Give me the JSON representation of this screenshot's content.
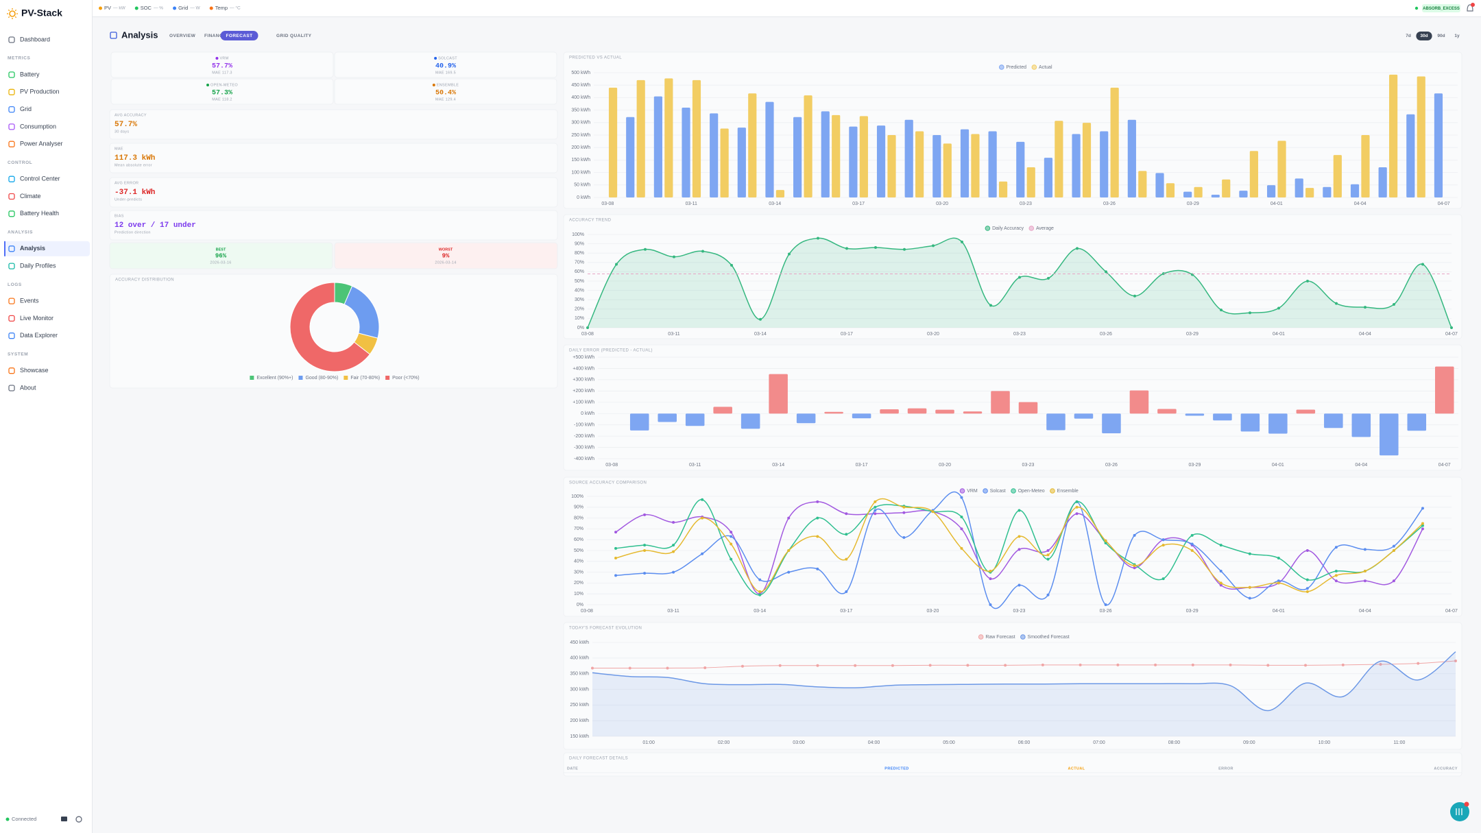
{
  "sidebar": {
    "brand": "PV-Stack",
    "top": "Dashboard",
    "active_item": "Analysis",
    "sections": [
      {
        "title": "METRICS",
        "items": [
          "Battery",
          "PV Production",
          "Grid",
          "Consumption",
          "Power Analyser"
        ]
      },
      {
        "title": "CONTROL",
        "items": [
          "Control Center",
          "Climate",
          "Battery Health"
        ]
      },
      {
        "title": "ANALYSIS",
        "items": [
          "Analysis",
          "Daily Profiles"
        ]
      },
      {
        "title": "LOGS",
        "items": [
          "Events",
          "Live Monitor",
          "Data Explorer"
        ]
      },
      {
        "title": "SYSTEM",
        "items": [
          "Showcase",
          "About"
        ]
      }
    ],
    "status": "Connected"
  },
  "topbar": {
    "items": [
      {
        "label": "PV",
        "value": "— kW",
        "color": "#f59e0b"
      },
      {
        "label": "SOC",
        "value": "— %",
        "color": "#22c55e"
      },
      {
        "label": "Grid",
        "value": "— W",
        "color": "#3b82f6"
      },
      {
        "label": "Temp",
        "value": "— °C",
        "color": "#f97316"
      }
    ],
    "mode": "ABSORB_EXCESS"
  },
  "header": {
    "title": "Analysis",
    "tabs": [
      "OVERVIEW",
      "FINANCIAL",
      "FORECAST",
      "GRID QUALITY"
    ],
    "active_tab": "FORECAST",
    "ranges": [
      "7d",
      "30d",
      "90d",
      "1y"
    ],
    "active_range": "30d"
  },
  "sources": [
    {
      "name": "VRM",
      "value": "57.7%",
      "sub": "MAE 117.3",
      "color": "#9333ea"
    },
    {
      "name": "SOLCAST",
      "value": "40.9%",
      "sub": "MAE 169.5",
      "color": "#2563eb"
    },
    {
      "name": "OPEN-METEO",
      "value": "57.3%",
      "sub": "MAE 118.2",
      "color": "#16a34a"
    },
    {
      "name": "ENSEMBLE",
      "value": "50.4%",
      "sub": "MAE 129.4",
      "color": "#d97706"
    }
  ],
  "stats": [
    {
      "label": "AVG ACCURACY",
      "value": "57.7%",
      "sub": "30 days",
      "color": "#d97706"
    },
    {
      "label": "MAE",
      "value": "117.3 kWh",
      "sub": "Mean absolute error",
      "color": "#d97706"
    },
    {
      "label": "AVG ERROR",
      "value": "-37.1 kWh",
      "sub": "Under-predicts",
      "color": "#dc2626"
    },
    {
      "label": "BIAS",
      "value": "12 over / 17 under",
      "sub": "Prediction direction",
      "color": "#7c3aed"
    }
  ],
  "best": {
    "label": "BEST",
    "value": "96%",
    "date": "2026-03-16"
  },
  "worst": {
    "label": "WORST",
    "value": "9%",
    "date": "2026-03-14"
  },
  "details": {
    "title": "DAILY FORECAST DETAILS",
    "columns": [
      "DATE",
      "PREDICTED",
      "ACTUAL",
      "ERROR",
      "ACCURACY"
    ]
  },
  "chart_data": [
    {
      "type": "bar",
      "title": "PREDICTED VS ACTUAL",
      "grid": true,
      "categories": [
        "03-08",
        null,
        null,
        "03-11",
        null,
        null,
        "03-14",
        null,
        null,
        "03-17",
        null,
        null,
        "03-20",
        null,
        null,
        "03-23",
        null,
        null,
        "03-26",
        null,
        null,
        "03-29",
        null,
        null,
        "04-01",
        null,
        null,
        "04-04",
        null,
        null,
        "04-07"
      ],
      "series": [
        {
          "name": "Predicted",
          "color": "#7ea6f2",
          "values": [
            null,
            322,
            405,
            360,
            337,
            280,
            383,
            322,
            345,
            284,
            288,
            311,
            250,
            273,
            265,
            223,
            159,
            254,
            265,
            311,
            98,
            23,
            11,
            27,
            49,
            76,
            42,
            53,
            121,
            333,
            417
          ]
        },
        {
          "name": "Actual",
          "color": "#f2cd63",
          "values": [
            440,
            470,
            477,
            470,
            276,
            417,
            30,
            409,
            330,
            326,
            250,
            265,
            216,
            254,
            64,
            121,
            307,
            299,
            440,
            106,
            57,
            42,
            72,
            186,
            227,
            38,
            170,
            250,
            492,
            485,
            0
          ]
        }
      ],
      "ylim": [
        0,
        500
      ],
      "yticks": [
        {
          "value": 0,
          "label": "0 kWh"
        },
        {
          "value": 50,
          "label": "50 kWh"
        },
        {
          "value": 100,
          "label": "100 kWh"
        },
        {
          "value": 150,
          "label": "150 kWh"
        },
        {
          "value": 200,
          "label": "200 kWh"
        },
        {
          "value": 250,
          "label": "250 kWh"
        },
        {
          "value": 300,
          "label": "300 kWh"
        },
        {
          "value": 350,
          "label": "350 kWh"
        },
        {
          "value": 400,
          "label": "400 kWh"
        },
        {
          "value": 450,
          "label": "450 kWh"
        },
        {
          "value": 500,
          "label": "500 kWh"
        }
      ]
    },
    {
      "type": "line",
      "title": "ACCURACY TREND",
      "grid": true,
      "categories": [
        "03-08",
        null,
        null,
        "03-11",
        null,
        null,
        "03-14",
        null,
        null,
        "03-17",
        null,
        null,
        "03-20",
        null,
        null,
        "03-23",
        null,
        null,
        "03-26",
        null,
        null,
        "03-29",
        null,
        null,
        "04-01",
        null,
        null,
        "04-04",
        null,
        null,
        "04-07"
      ],
      "series": [
        {
          "name": "Daily Accuracy",
          "color": "#34b77f",
          "area": true,
          "dots": true,
          "values": [
            0,
            68,
            84,
            76,
            82,
            67,
            9,
            79,
            96,
            85,
            86,
            84,
            88,
            92,
            24,
            54,
            53,
            85,
            60,
            34,
            58,
            57,
            19,
            16,
            21,
            50,
            26,
            22,
            25,
            68,
            0
          ]
        },
        {
          "name": "Average",
          "color": "#e6a3c4",
          "dash": true,
          "value": 57.7
        }
      ],
      "ylim": [
        0,
        100
      ],
      "yticks": [
        {
          "value": 0,
          "label": "0%"
        },
        {
          "value": 10,
          "label": "10%"
        },
        {
          "value": 20,
          "label": "20%"
        },
        {
          "value": 30,
          "label": "30%"
        },
        {
          "value": 40,
          "label": "40%"
        },
        {
          "value": 50,
          "label": "50%"
        },
        {
          "value": 60,
          "label": "60%"
        },
        {
          "value": 70,
          "label": "70%"
        },
        {
          "value": 80,
          "label": "80%"
        },
        {
          "value": 90,
          "label": "90%"
        },
        {
          "value": 100,
          "label": "100%"
        }
      ]
    },
    {
      "type": "bar",
      "title": "DAILY ERROR (PREDICTED - ACTUAL)",
      "grid": true,
      "categories": [
        "03-08",
        null,
        null,
        "03-11",
        null,
        null,
        "03-14",
        null,
        null,
        "03-17",
        null,
        null,
        "03-20",
        null,
        null,
        "03-23",
        null,
        null,
        "03-26",
        null,
        null,
        "03-29",
        null,
        null,
        "04-01",
        null,
        null,
        "04-04",
        null,
        null,
        "04-07"
      ],
      "values": [
        null,
        -150,
        -75,
        -110,
        60,
        -135,
        350,
        -85,
        15,
        -42,
        38,
        46,
        34,
        19,
        200,
        102,
        -148,
        -45,
        -175,
        205,
        41,
        -19,
        -61,
        -159,
        -178,
        35,
        -128,
        -208,
        -371,
        -152,
        417
      ],
      "color_positive": "#f28b8b",
      "color_negative": "#7ea6f2",
      "ylim": [
        -400,
        500
      ],
      "yticks": [
        {
          "value": -400,
          "label": "-400 kWh"
        },
        {
          "value": -300,
          "label": "-300 kWh"
        },
        {
          "value": -200,
          "label": "-200 kWh"
        },
        {
          "value": -100,
          "label": "-100 kWh"
        },
        {
          "value": 0,
          "label": "0 kWh"
        },
        {
          "value": 100,
          "label": "+100 kWh"
        },
        {
          "value": 200,
          "label": "+200 kWh"
        },
        {
          "value": 300,
          "label": "+300 kWh"
        },
        {
          "value": 400,
          "label": "+400 kWh"
        },
        {
          "value": 500,
          "label": "+500 kWh"
        }
      ]
    },
    {
      "type": "line",
      "title": "SOURCE ACCURACY COMPARISON",
      "grid": true,
      "categories": [
        "03-08",
        null,
        null,
        "03-11",
        null,
        null,
        "03-14",
        null,
        null,
        "03-17",
        null,
        null,
        "03-20",
        null,
        null,
        "03-23",
        null,
        null,
        "03-26",
        null,
        null,
        "03-29",
        null,
        null,
        "04-01",
        null,
        null,
        "04-04",
        null,
        null,
        "04-07"
      ],
      "series": [
        {
          "name": "VRM",
          "color": "#a259e0",
          "dots": true,
          "values": [
            null,
            67,
            83,
            76,
            81,
            67,
            10,
            80,
            95,
            84,
            84,
            85,
            86,
            70,
            24,
            51,
            50,
            84,
            59,
            34,
            60,
            55,
            18,
            16,
            20,
            50,
            22,
            22,
            22,
            70,
            null
          ]
        },
        {
          "name": "Solcast",
          "color": "#5b8def",
          "dots": true,
          "values": [
            null,
            27,
            29,
            30,
            47,
            63,
            23,
            30,
            33,
            12,
            87,
            62,
            87,
            99,
            0,
            18,
            9,
            95,
            0,
            64,
            60,
            56,
            31,
            6,
            22,
            15,
            53,
            51,
            54,
            89,
            null
          ]
        },
        {
          "name": "Open-Meteo",
          "color": "#2fbf8f",
          "dots": true,
          "values": [
            null,
            52,
            55,
            55,
            97,
            42,
            9,
            50,
            80,
            65,
            90,
            91,
            86,
            81,
            30,
            87,
            42,
            95,
            57,
            37,
            24,
            64,
            55,
            47,
            43,
            23,
            31,
            31,
            50,
            73,
            null
          ]
        },
        {
          "name": "Ensemble",
          "color": "#e5b92f",
          "dots": true,
          "values": [
            null,
            43,
            50,
            49,
            80,
            56,
            12,
            50,
            63,
            42,
            95,
            90,
            86,
            52,
            31,
            63,
            46,
            90,
            59,
            36,
            55,
            50,
            20,
            16,
            20,
            12,
            27,
            31,
            50,
            75,
            null
          ]
        }
      ],
      "ylim": [
        0,
        100
      ],
      "yticks": [
        {
          "value": 0,
          "label": "0%"
        },
        {
          "value": 10,
          "label": "10%"
        },
        {
          "value": 20,
          "label": "20%"
        },
        {
          "value": 30,
          "label": "30%"
        },
        {
          "value": 40,
          "label": "40%"
        },
        {
          "value": 50,
          "label": "50%"
        },
        {
          "value": 60,
          "label": "60%"
        },
        {
          "value": 70,
          "label": "70%"
        },
        {
          "value": 80,
          "label": "80%"
        },
        {
          "value": 90,
          "label": "90%"
        },
        {
          "value": 100,
          "label": "100%"
        }
      ]
    },
    {
      "type": "line",
      "title": "TODAY'S FORECAST EVOLUTION",
      "grid": true,
      "x": [
        0.25,
        0.75,
        1.25,
        1.75,
        2.25,
        2.75,
        3.25,
        3.75,
        4.25,
        4.75,
        5.25,
        5.75,
        6.25,
        6.75,
        7.25,
        7.75,
        8.25,
        8.75,
        9.25,
        9.75,
        10.25,
        10.75,
        11.25,
        11.75
      ],
      "xlim": [
        0.25,
        11.75
      ],
      "xticks": [
        {
          "value": 1,
          "label": "01:00"
        },
        {
          "value": 2,
          "label": "02:00"
        },
        {
          "value": 3,
          "label": "03:00"
        },
        {
          "value": 4,
          "label": "04:00"
        },
        {
          "value": 5,
          "label": "05:00"
        },
        {
          "value": 6,
          "label": "06:00"
        },
        {
          "value": 7,
          "label": "07:00"
        },
        {
          "value": 8,
          "label": "08:00"
        },
        {
          "value": 9,
          "label": "09:00"
        },
        {
          "value": 10,
          "label": "10:00"
        },
        {
          "value": 11,
          "label": "11:00"
        }
      ],
      "series": [
        {
          "name": "Raw Forecast",
          "color": "#f0a5a5",
          "dots": true,
          "values": [
            368,
            368,
            368,
            369,
            374,
            376,
            376,
            376,
            376,
            377,
            377,
            377,
            378,
            378,
            378,
            378,
            378,
            378,
            377,
            377,
            378,
            380,
            383,
            391
          ]
        },
        {
          "name": "Smoothed Forecast",
          "color": "#6c98e6",
          "area": true,
          "values": [
            353,
            341,
            338,
            318,
            315,
            316,
            308,
            305,
            313,
            315,
            316,
            317,
            317,
            318,
            318,
            318,
            318,
            312,
            232,
            320,
            277,
            390,
            330,
            420
          ]
        }
      ],
      "ylim": [
        150,
        450
      ],
      "yticks": [
        {
          "value": 150,
          "label": "150 kWh"
        },
        {
          "value": 200,
          "label": "200 kWh"
        },
        {
          "value": 250,
          "label": "250 kWh"
        },
        {
          "value": 300,
          "label": "300 kWh"
        },
        {
          "value": 350,
          "label": "350 kWh"
        },
        {
          "value": 400,
          "label": "400 kWh"
        },
        {
          "value": 450,
          "label": "450 kWh"
        }
      ]
    },
    {
      "type": "pie",
      "donut": true,
      "title": "ACCURACY DISTRIBUTION",
      "labels": [
        "Excellent (90%+)",
        "Good (80-90%)",
        "Fair (70-80%)",
        "Poor (<70%)"
      ],
      "values": [
        2,
        7,
        2,
        20
      ],
      "colors": [
        "#4cc477",
        "#6d9cf0",
        "#f1c043",
        "#ef6868"
      ]
    }
  ]
}
